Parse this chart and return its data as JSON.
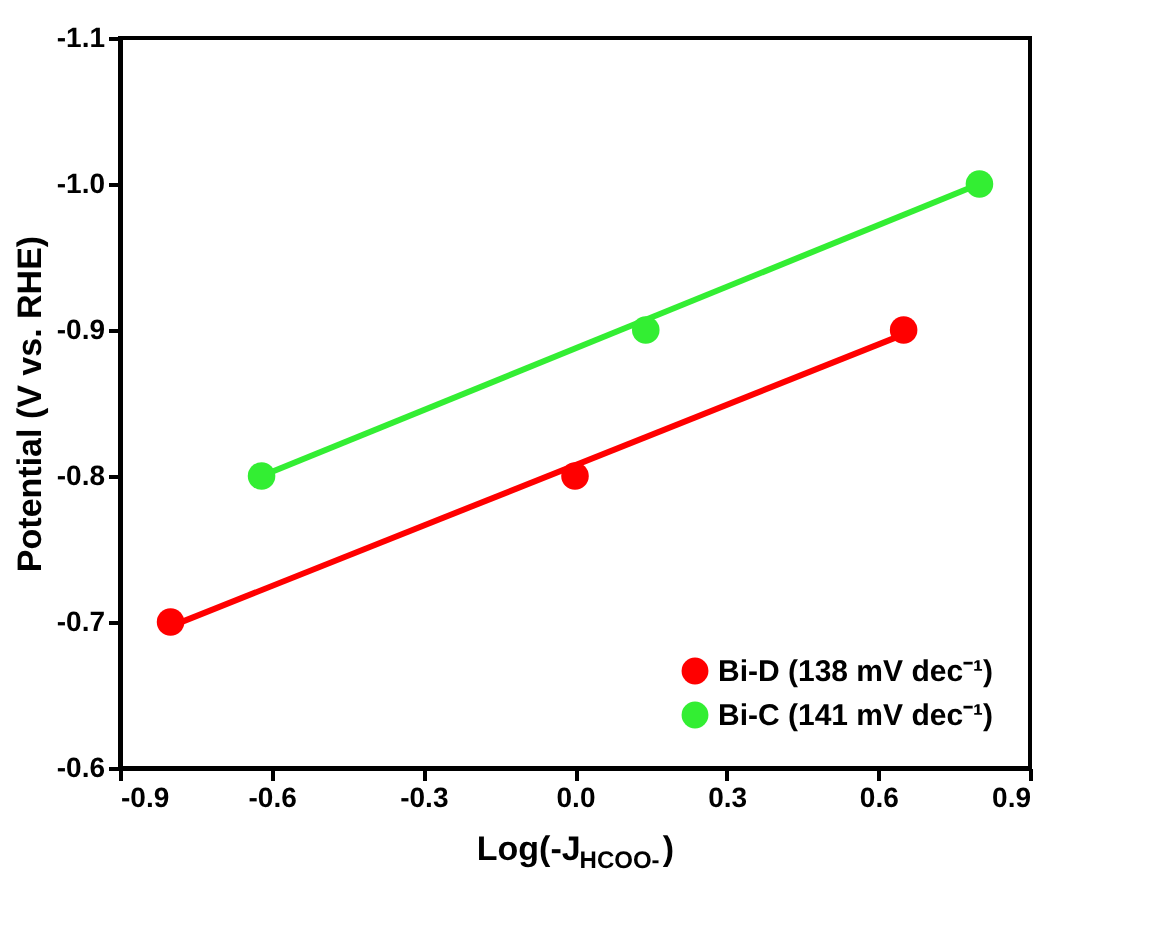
{
  "chart_data": {
    "type": "scatter",
    "xlabel": "Log(-J$_{HCOO-}$)",
    "ylabel": "Potential (V vs. RHE)",
    "xlim": [
      -0.9,
      0.9
    ],
    "xticks": [
      -0.9,
      -0.6,
      -0.3,
      {
        "value": 0,
        "label": "0.0"
      },
      0.3,
      0.6,
      0.9
    ],
    "ylim": [
      -0.6,
      -1.1
    ],
    "yticks": [
      -0.6,
      -0.7,
      -0.8,
      -0.9,
      {
        "value": -1,
        "label": "-1.0"
      },
      -1.1
    ],
    "grid": false,
    "legend": "bottom right",
    "marker": "circle",
    "series": [
      {
        "name": "Bi-D (138 mV dec⁻¹)",
        "color": "#ff0000",
        "x": [
          -0.8,
          0,
          0.65
        ],
        "values": [
          -0.7,
          -0.8,
          -0.9
        ]
      },
      {
        "name": "Bi-C (141 mV dec⁻¹)",
        "color": "#33ee33",
        "x": [
          -0.62,
          0.14,
          0.8
        ],
        "values": [
          -0.8,
          -0.9,
          -1.0
        ]
      },
      {
        "type": "line",
        "color": "#ff0000",
        "x": [
          -0.8,
          0.65
        ],
        "values": [
          -0.697,
          -0.897
        ],
        "line_style": "solid",
        "marker": "none"
      },
      {
        "type": "line",
        "color": "#33ee33",
        "x": [
          -0.62,
          0.8
        ],
        "values": [
          -0.8,
          -1.0
        ],
        "line_style": "solid",
        "marker": "none"
      }
    ]
  }
}
